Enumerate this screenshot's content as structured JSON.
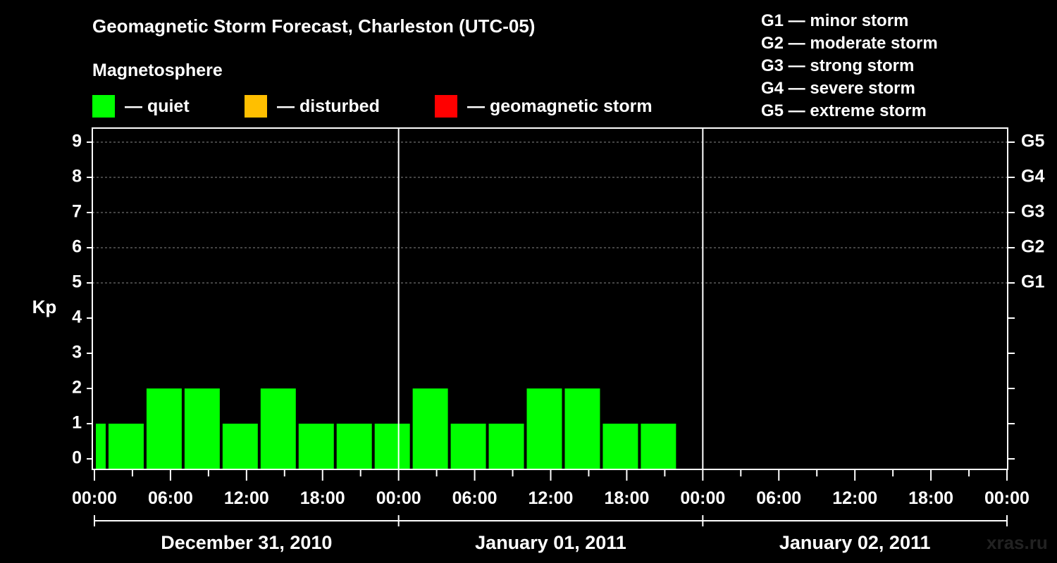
{
  "title": "Geomagnetic Storm Forecast, Charleston (UTC-05)",
  "legend": {
    "heading": "Magnetosphere",
    "items": [
      {
        "label": "— quiet",
        "color": "#00ff00"
      },
      {
        "label": "— disturbed",
        "color": "#ffbf00"
      },
      {
        "label": "— geomagnetic storm",
        "color": "#ff0000"
      }
    ]
  },
  "storm_scale": [
    "G1 — minor storm",
    "G2 — moderate storm",
    "G3 — strong storm",
    "G4 — severe storm",
    "G5 — extreme storm"
  ],
  "watermark": "xras.ru",
  "chart_data": {
    "type": "bar",
    "ylabel": "Kp",
    "ylim": [
      0,
      9
    ],
    "yticks": [
      "0",
      "1",
      "2",
      "3",
      "4",
      "5",
      "6",
      "7",
      "8",
      "9"
    ],
    "right_ticks": [
      {
        "kp": 5,
        "label": "G1"
      },
      {
        "kp": 6,
        "label": "G2"
      },
      {
        "kp": 7,
        "label": "G3"
      },
      {
        "kp": 8,
        "label": "G4"
      },
      {
        "kp": 9,
        "label": "G5"
      }
    ],
    "x_range_hours": [
      0,
      72
    ],
    "xticks": [
      {
        "hour": 0,
        "label": "00:00"
      },
      {
        "hour": 6,
        "label": "06:00"
      },
      {
        "hour": 12,
        "label": "12:00"
      },
      {
        "hour": 18,
        "label": "18:00"
      },
      {
        "hour": 24,
        "label": "00:00"
      },
      {
        "hour": 30,
        "label": "06:00"
      },
      {
        "hour": 36,
        "label": "12:00"
      },
      {
        "hour": 42,
        "label": "18:00"
      },
      {
        "hour": 48,
        "label": "00:00"
      },
      {
        "hour": 54,
        "label": "06:00"
      },
      {
        "hour": 60,
        "label": "12:00"
      },
      {
        "hour": 66,
        "label": "18:00"
      },
      {
        "hour": 72,
        "label": "00:00"
      }
    ],
    "days": [
      {
        "label": "December 31, 2010",
        "start": 0,
        "end": 24
      },
      {
        "label": "January 01, 2011",
        "start": 24,
        "end": 48
      },
      {
        "label": "January 02, 2011",
        "start": 48,
        "end": 72
      }
    ],
    "grid": "dashed lines at Kp 5-9",
    "bars": [
      {
        "start": 0,
        "end": 1,
        "kp": 1,
        "status": "quiet"
      },
      {
        "start": 1,
        "end": 4,
        "kp": 1,
        "status": "quiet"
      },
      {
        "start": 4,
        "end": 7,
        "kp": 2,
        "status": "quiet"
      },
      {
        "start": 7,
        "end": 10,
        "kp": 2,
        "status": "quiet"
      },
      {
        "start": 10,
        "end": 13,
        "kp": 1,
        "status": "quiet"
      },
      {
        "start": 13,
        "end": 16,
        "kp": 2,
        "status": "quiet"
      },
      {
        "start": 16,
        "end": 19,
        "kp": 1,
        "status": "quiet"
      },
      {
        "start": 19,
        "end": 22,
        "kp": 1,
        "status": "quiet"
      },
      {
        "start": 22,
        "end": 25,
        "kp": 1,
        "status": "quiet"
      },
      {
        "start": 25,
        "end": 28,
        "kp": 2,
        "status": "quiet"
      },
      {
        "start": 28,
        "end": 31,
        "kp": 1,
        "status": "quiet"
      },
      {
        "start": 31,
        "end": 34,
        "kp": 1,
        "status": "quiet"
      },
      {
        "start": 34,
        "end": 37,
        "kp": 2,
        "status": "quiet"
      },
      {
        "start": 37,
        "end": 40,
        "kp": 2,
        "status": "quiet"
      },
      {
        "start": 40,
        "end": 43,
        "kp": 1,
        "status": "quiet"
      },
      {
        "start": 43,
        "end": 46,
        "kp": 1,
        "status": "quiet"
      }
    ]
  }
}
